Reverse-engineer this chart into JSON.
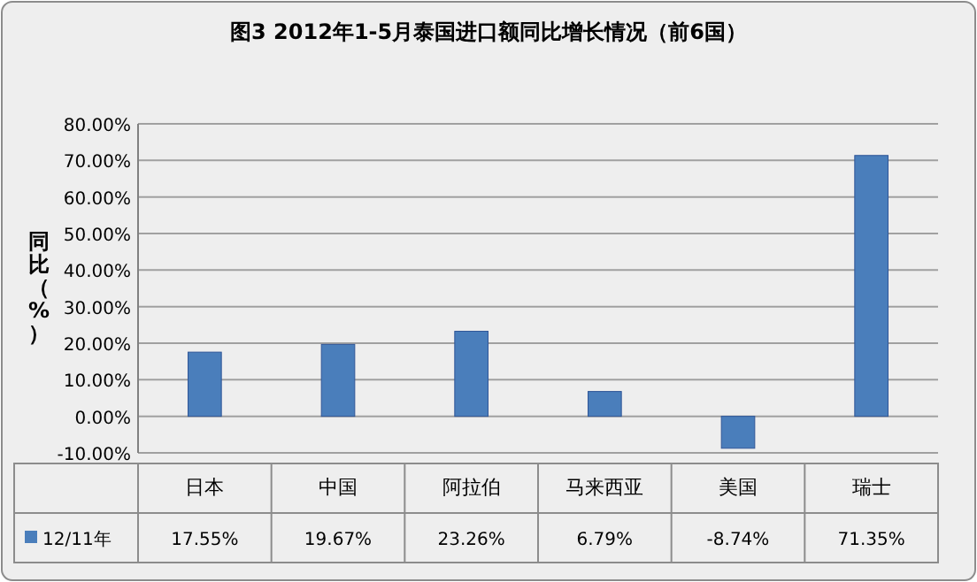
{
  "chart_data": {
    "type": "bar",
    "title": "图3  2012年1-5月泰国进口额同比增长情况（前6国）",
    "ylabel": "同比（%）",
    "categories": [
      "日本",
      "中国",
      "阿拉伯",
      "马来西亚",
      "美国",
      "瑞士"
    ],
    "series": [
      {
        "name": "12/11年",
        "color": "#4a7ebb",
        "values": [
          17.55,
          19.67,
          23.26,
          6.79,
          -8.74,
          71.35
        ],
        "value_labels": [
          "17.55%",
          "19.67%",
          "23.26%",
          "6.79%",
          "-8.74%",
          "71.35%"
        ]
      }
    ],
    "ylim": [
      -10,
      80
    ],
    "yticks": [
      {
        "value": -10,
        "label": "-10.00%"
      },
      {
        "value": 0,
        "label": "0.00%"
      },
      {
        "value": 10,
        "label": "10.00%"
      },
      {
        "value": 20,
        "label": "20.00%"
      },
      {
        "value": 30,
        "label": "30.00%"
      },
      {
        "value": 40,
        "label": "40.00%"
      },
      {
        "value": 50,
        "label": "50.00%"
      },
      {
        "value": 60,
        "label": "60.00%"
      },
      {
        "value": 70,
        "label": "70.00%"
      },
      {
        "value": 80,
        "label": "80.00%"
      }
    ],
    "grid": "y",
    "legend": "bottom"
  }
}
